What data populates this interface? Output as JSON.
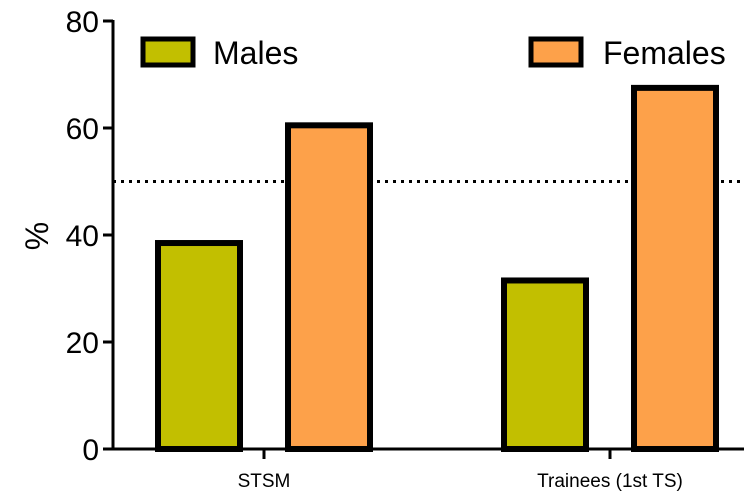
{
  "chart_data": {
    "type": "bar",
    "categories": [
      "STSM",
      "Trainees (1st TS)"
    ],
    "series": [
      {
        "name": "Males",
        "values": [
          38.5,
          31.5
        ],
        "color": "#c2bf00"
      },
      {
        "name": "Females",
        "values": [
          60.5,
          67.5
        ],
        "color": "#fda14a"
      }
    ],
    "ylabel": "%",
    "xlabel": "",
    "ylim": [
      0,
      80
    ],
    "yticks": [
      "0",
      "20",
      "40",
      "60",
      "80"
    ],
    "reference_line": {
      "y": 50,
      "style": "dotted"
    },
    "legend_position": "top",
    "grid": false
  }
}
